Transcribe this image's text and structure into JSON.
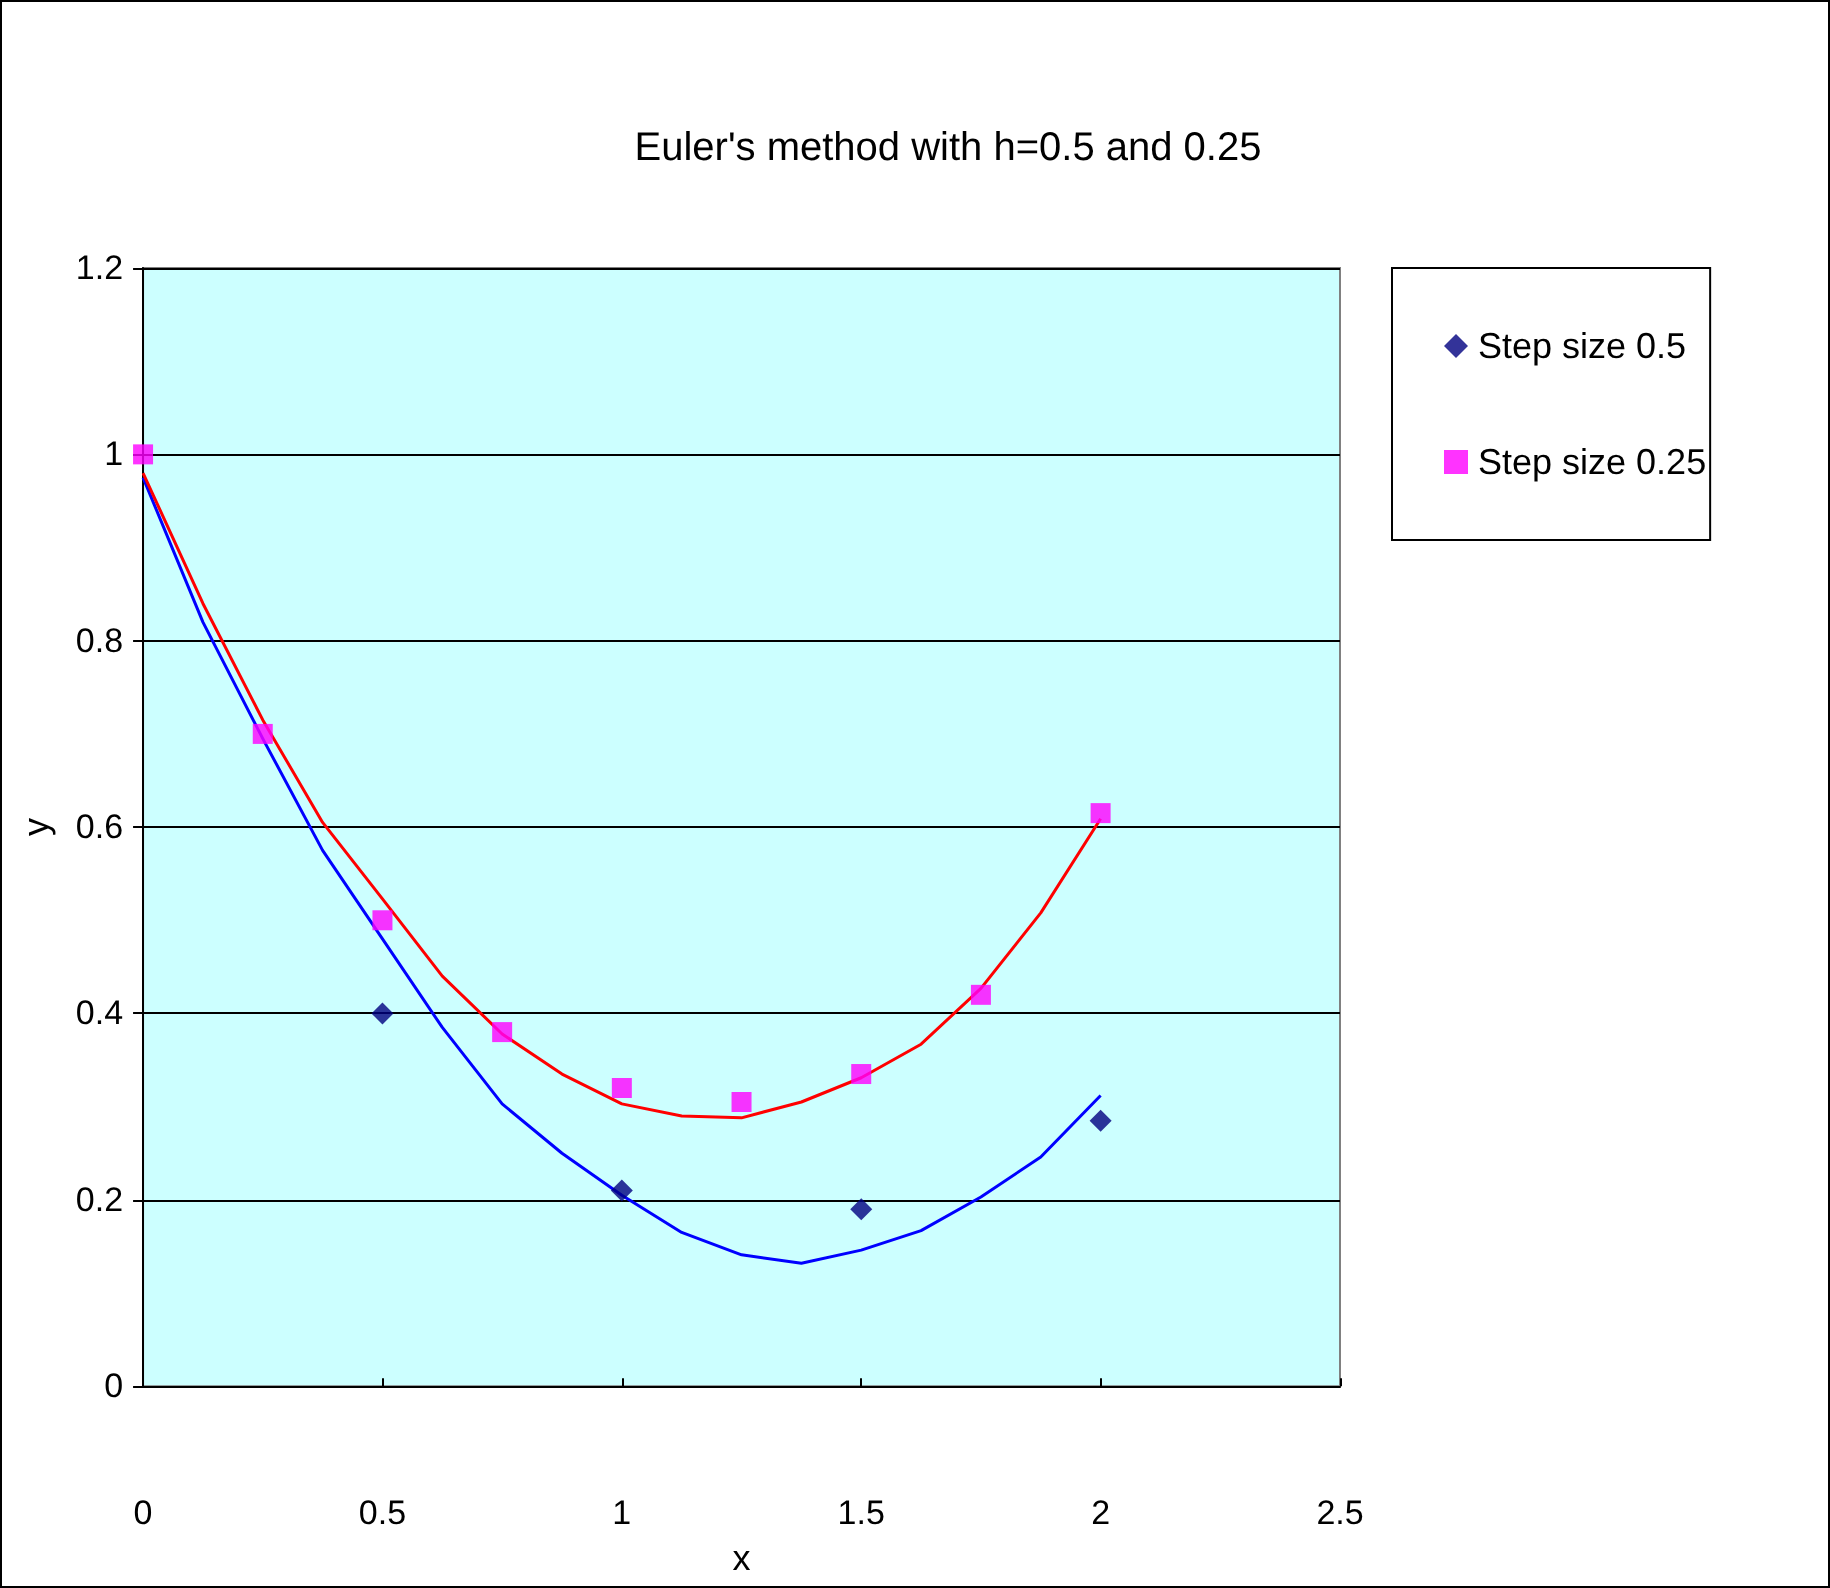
{
  "chart_data": {
    "type": "scatter",
    "title": "Euler's method with h=0.5 and 0.25",
    "xlabel": "x",
    "ylabel": "y",
    "xlim": [
      0,
      2.5
    ],
    "xticks": [
      0,
      0.5,
      1,
      1.5,
      2,
      2.5
    ],
    "ylim": [
      0,
      1.2
    ],
    "yticks": [
      0,
      0.2,
      0.4,
      0.6,
      0.8,
      1,
      1.2
    ],
    "grid": "y",
    "legend": "right",
    "series": [
      {
        "name": "Step size 0.5",
        "marker": "diamond",
        "color": "#000080",
        "x": [
          0.5,
          1,
          1.5,
          2
        ],
        "values": [
          0.4,
          0.21,
          0.19,
          0.285
        ]
      },
      {
        "name": "Step size 0.25",
        "marker": "square",
        "color": "#ff00ff",
        "x": [
          0,
          0.25,
          0.5,
          0.75,
          1,
          1.25,
          1.5,
          1.75,
          2
        ],
        "values": [
          1,
          0.7,
          0.5,
          0.38,
          0.32,
          0.305,
          0.335,
          0.42,
          0.615
        ]
      },
      {
        "type": "line",
        "marker": "none",
        "color": "#0000ff",
        "x": [
          0,
          0.125,
          0.25,
          0.375,
          0.5,
          0.625,
          0.75,
          0.875,
          1,
          1.125,
          1.25,
          1.375,
          1.5,
          1.625,
          1.75,
          1.875,
          2
        ],
        "values": [
          0.975,
          0.82,
          0.695,
          0.575,
          0.48,
          0.385,
          0.303,
          0.25,
          0.205,
          0.165,
          0.141,
          0.132,
          0.146,
          0.167,
          0.203,
          0.246,
          0.312
        ]
      },
      {
        "type": "line",
        "marker": "none",
        "color": "#ff0000",
        "x": [
          0,
          0.125,
          0.25,
          0.375,
          0.5,
          0.625,
          0.75,
          0.875,
          1,
          1.125,
          1.25,
          1.375,
          1.5,
          1.625,
          1.75,
          1.875,
          2
        ],
        "values": [
          0.98,
          0.84,
          0.715,
          0.605,
          0.523,
          0.44,
          0.378,
          0.335,
          0.303,
          0.29,
          0.288,
          0.305,
          0.331,
          0.367,
          0.427,
          0.508,
          0.609
        ]
      }
    ]
  }
}
